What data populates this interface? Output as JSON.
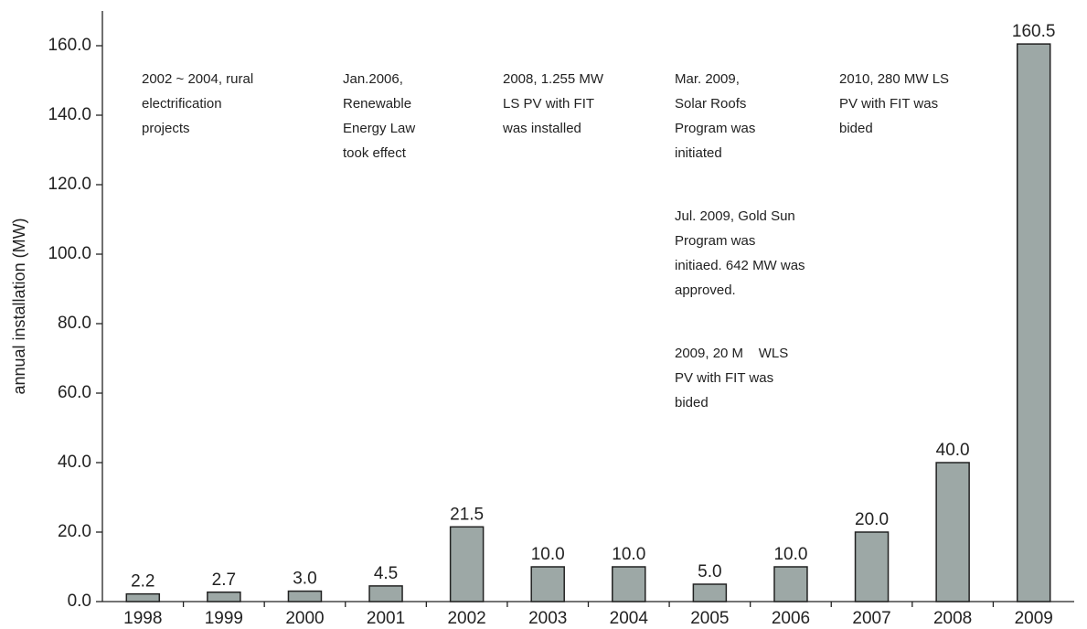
{
  "chart_data": {
    "type": "bar",
    "y_label": "annual installation (MW)",
    "categories": [
      "1998",
      "1999",
      "2000",
      "2001",
      "2002",
      "2003",
      "2004",
      "2005",
      "2006",
      "2007",
      "2008",
      "2009"
    ],
    "values": [
      2.2,
      2.7,
      3.0,
      4.5,
      21.5,
      10.0,
      10.0,
      5.0,
      10.0,
      20.0,
      40.0,
      160.5
    ],
    "value_labels": [
      "2.2",
      "2.7",
      "3.0",
      "4.5",
      "21.5",
      "10.0",
      "10.0",
      "5.0",
      "10.0",
      "20.0",
      "40.0",
      "160.5"
    ],
    "color": "#9da8a6",
    "ylim": [
      0,
      170
    ],
    "yticks": [
      {
        "value": 0,
        "label": "0.0"
      },
      {
        "value": 20,
        "label": "20.0"
      },
      {
        "value": 40,
        "label": "40.0"
      },
      {
        "value": 60,
        "label": "60.0"
      },
      {
        "value": 80,
        "label": "80.0"
      },
      {
        "value": 100,
        "label": "100.0"
      },
      {
        "value": 120,
        "label": "120.0"
      },
      {
        "value": 140,
        "label": "140.0"
      },
      {
        "value": 160,
        "label": "160.0"
      }
    ],
    "annotations": [
      [
        "2002 ~ 2004, rural",
        "electrification",
        "projects"
      ],
      [
        "Jan.2006,",
        "Renewable",
        "Energy Law",
        "took effect"
      ],
      [
        "2008, 1.255 MW",
        "LS PV with FIT",
        "was installed"
      ],
      [
        "Mar. 2009,",
        "Solar Roofs",
        "Program was",
        "initiated"
      ],
      [
        "2010, 280 MW LS",
        "PV with FIT was",
        "bided"
      ],
      [
        "Jul. 2009, Gold Sun",
        "Program was",
        "initiaed. 642 MW was",
        "approved."
      ],
      [
        "2009, 20 M    WLS",
        "PV with FIT was",
        "bided"
      ]
    ]
  }
}
